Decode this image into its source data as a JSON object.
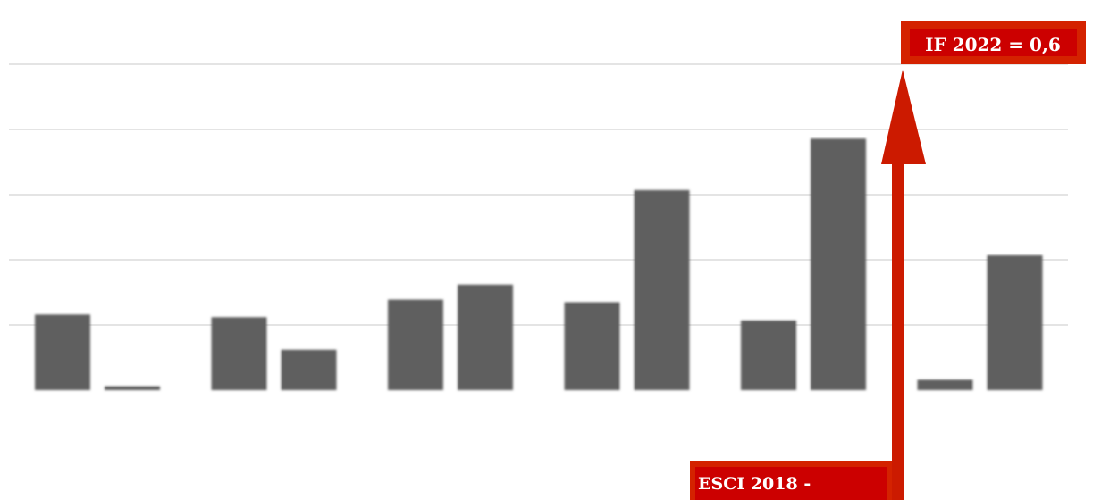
{
  "chart_data": {
    "type": "bar",
    "title": "",
    "xlabel": "",
    "ylabel": "",
    "categories": [
      "",
      "",
      "",
      "",
      "",
      ""
    ],
    "series": [
      {
        "values": [
          0.116,
          0.112,
          0.139,
          0.135,
          0.107,
          0.016
        ]
      },
      {
        "values": [
          0.006,
          0.062,
          0.162,
          0.307,
          0.386,
          0.207
        ]
      }
    ],
    "ylim": [
      0,
      0.5
    ],
    "grid": true,
    "legend": "none"
  },
  "annotations": {
    "top_label": "IF 2022 = 0,6",
    "bottom_label": "ESCI 2018 -"
  },
  "colors": {
    "bar": "#5f5f5f",
    "grid": "#dcdcdc",
    "callout_fill": "#cc0000",
    "callout_border": "#d42200",
    "arrow": "#cc1a00"
  }
}
